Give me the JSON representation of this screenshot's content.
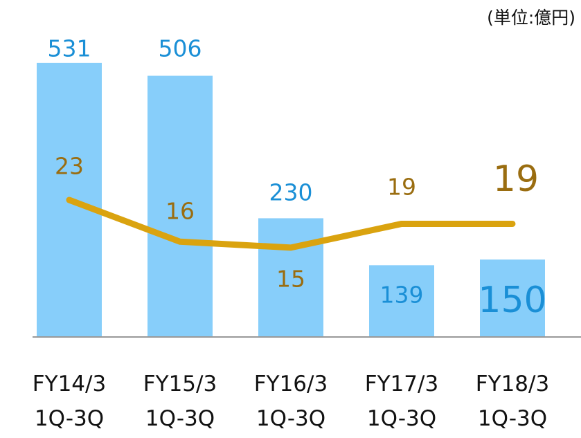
{
  "chart_data": {
    "type": "bar_line",
    "unit_label": "(単位:億円)",
    "categories": [
      "FY14/3\n1Q-3Q",
      "FY15/3\n1Q-3Q",
      "FY16/3\n1Q-3Q",
      "FY17/3\n1Q-3Q",
      "FY18/3\n1Q-3Q"
    ],
    "series": [
      {
        "type": "bar",
        "color": "#87cefa",
        "values": [
          531,
          506,
          230,
          139,
          150
        ]
      },
      {
        "type": "line",
        "color": "#daa30f",
        "axis": "y2",
        "values": [
          23,
          16,
          15,
          19,
          19
        ]
      }
    ],
    "ylim": [
      0,
      600
    ],
    "y2lim": [
      0,
      52
    ]
  }
}
